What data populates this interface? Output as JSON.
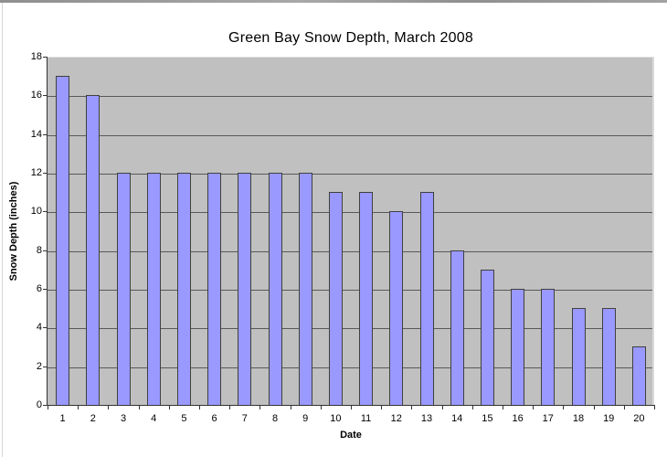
{
  "window": {
    "top_strip_color": "#9b9b9b",
    "background": "#ffffff"
  },
  "chart_data": {
    "type": "bar",
    "title": "Green Bay Snow Depth, March 2008",
    "xlabel": "Date",
    "ylabel": "Snow Depth (inches)",
    "categories": [
      "1",
      "2",
      "3",
      "4",
      "5",
      "6",
      "7",
      "8",
      "9",
      "10",
      "11",
      "12",
      "13",
      "14",
      "15",
      "16",
      "17",
      "18",
      "19",
      "20"
    ],
    "values": [
      17,
      16,
      12,
      12,
      12,
      12,
      12,
      12,
      12,
      11,
      11,
      10,
      11,
      8,
      7,
      6,
      6,
      5,
      5,
      3
    ],
    "ylim": [
      0,
      18
    ],
    "ytick_step": 2,
    "grid": true,
    "legend": false,
    "colors": {
      "bar_fill": "#9999ff",
      "bar_border": "#404040",
      "plot_background": "#c0c0c0",
      "gridline": "#595959",
      "axis": "#333333",
      "text": "#000000"
    }
  }
}
